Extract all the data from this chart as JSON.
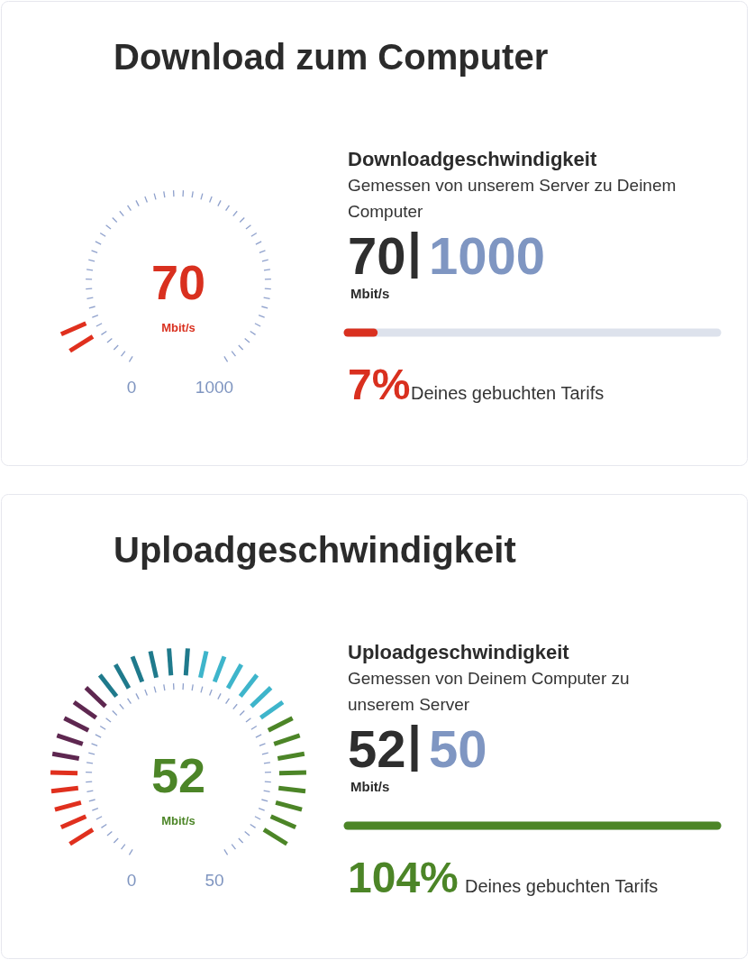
{
  "chart_data": [
    {
      "type": "other",
      "title": "Download zum Computer",
      "subtitle": "Downloadgeschwindigkeit",
      "annotations": [
        "Gemessen von unserem Server zu Deinem Computer",
        "7%",
        "Deines gebuchten Tarifs",
        "70",
        "1000",
        "0",
        "1000"
      ],
      "values": [
        70
      ],
      "xlabel": "Mbit/s",
      "color": "#d9301f",
      "data_labels": true
    },
    {
      "type": "other",
      "title": "Uploadgeschwindigkeit",
      "subtitle": "Uploadgeschwindigkeit",
      "annotations": [
        "Gemessen von Deinem Computer zu unserem Server",
        "104%",
        "Deines gebuchten Tarifs",
        "52",
        "50",
        "0",
        "50"
      ],
      "values": [
        52
      ],
      "xlabel": "Mbit/s",
      "color": "#4c8527",
      "data_labels": true
    }
  ]
}
